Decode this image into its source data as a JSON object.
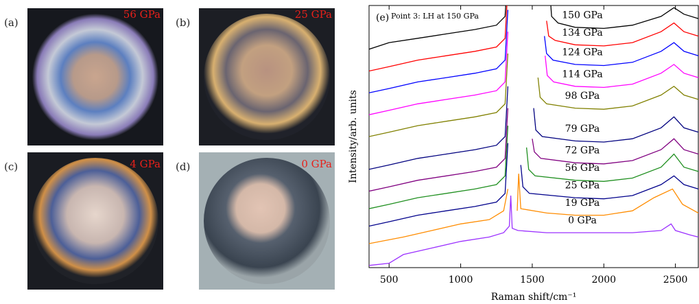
{
  "photos": [
    {
      "label": "(a)",
      "pressure": "56 GPa"
    },
    {
      "label": "(b)",
      "pressure": "25 GPa"
    },
    {
      "label": "(c)",
      "pressure": "4 GPa"
    },
    {
      "label": "(d)",
      "pressure": "0 GPa"
    }
  ],
  "chart_data": {
    "type": "line",
    "panel_label": "(e)",
    "annotation": "Point 3: LH at 150 GPa",
    "x_label": "Raman shift/cm⁻¹",
    "y_label": "Intensity/arb. units",
    "xlim": [
      360,
      2660
    ],
    "ylim": [
      0,
      12
    ],
    "xticks": [
      500,
      1000,
      1500,
      2000,
      2500
    ],
    "series": [
      {
        "name": "0 GPa",
        "color": "#9b30ff",
        "x": [
          360,
          500,
          600,
          800,
          1000,
          1200,
          1300,
          1340,
          1350,
          1360,
          1400,
          1600,
          1800,
          2000,
          2200,
          2400,
          2470,
          2500,
          2600,
          2660
        ],
        "values": [
          0.1,
          0.2,
          0.6,
          0.9,
          1.2,
          1.4,
          1.6,
          1.9,
          3.3,
          1.8,
          1.7,
          1.6,
          1.6,
          1.6,
          1.6,
          1.7,
          2.0,
          1.7,
          1.5,
          1.4
        ]
      },
      {
        "name": "19 GPa",
        "color": "#ff8c00",
        "x": [
          360,
          600,
          800,
          1000,
          1200,
          1300,
          1330,
          1340,
          1395,
          1405,
          1420,
          1600,
          1800,
          2000,
          2200,
          2350,
          2480,
          2550,
          2660
        ],
        "values": [
          1.1,
          1.4,
          1.7,
          2.0,
          2.2,
          2.6,
          3.6,
          null,
          2.6,
          4.3,
          2.7,
          2.5,
          2.4,
          2.4,
          2.6,
          3.2,
          3.6,
          2.9,
          2.5
        ]
      },
      {
        "name": "25 GPa",
        "color": "#00008b",
        "x": [
          360,
          500,
          700,
          900,
          1100,
          1250,
          1310,
          1330,
          1340,
          1420,
          1435,
          1480,
          1800,
          2000,
          2200,
          2400,
          2490,
          2560,
          2660
        ],
        "values": [
          1.9,
          2.1,
          2.4,
          2.6,
          2.8,
          3.0,
          3.4,
          5.7,
          null,
          4.7,
          3.7,
          3.4,
          3.2,
          3.15,
          3.3,
          3.8,
          4.2,
          3.8,
          3.6
        ]
      },
      {
        "name": "56 GPa",
        "color": "#1f8f1f",
        "x": [
          360,
          500,
          700,
          900,
          1100,
          1250,
          1310,
          1330,
          1340,
          1460,
          1475,
          1520,
          1800,
          2000,
          2200,
          2400,
          2490,
          2560,
          2660
        ],
        "values": [
          2.7,
          2.9,
          3.2,
          3.4,
          3.6,
          3.8,
          4.2,
          6.5,
          null,
          5.5,
          4.5,
          4.2,
          4.0,
          3.95,
          4.1,
          4.6,
          5.2,
          4.6,
          4.4
        ]
      },
      {
        "name": "72 GPa",
        "color": "#800080",
        "x": [
          360,
          500,
          700,
          900,
          1100,
          1250,
          1310,
          1330,
          1340,
          1500,
          1515,
          1560,
          1800,
          2000,
          2200,
          2400,
          2490,
          2560,
          2660
        ],
        "values": [
          3.5,
          3.7,
          4.0,
          4.2,
          4.4,
          4.6,
          5.0,
          7.3,
          null,
          5.9,
          5.3,
          5.0,
          4.8,
          4.75,
          4.9,
          5.4,
          5.9,
          5.4,
          5.2
        ]
      },
      {
        "name": "79 GPa",
        "color": "#00007f",
        "x": [
          360,
          500,
          700,
          900,
          1100,
          1250,
          1310,
          1330,
          1340,
          1510,
          1525,
          1570,
          1800,
          2000,
          2200,
          2400,
          2490,
          2560,
          2660
        ],
        "values": [
          4.5,
          4.7,
          5.0,
          5.2,
          5.4,
          5.6,
          6.0,
          8.3,
          null,
          7.3,
          6.3,
          6.0,
          5.8,
          5.75,
          5.9,
          6.4,
          6.9,
          6.4,
          6.2
        ]
      },
      {
        "name": "98 GPa",
        "color": "#808000",
        "x": [
          360,
          500,
          700,
          900,
          1100,
          1250,
          1310,
          1330,
          1340,
          1540,
          1555,
          1600,
          1800,
          2000,
          2200,
          2400,
          2490,
          2560,
          2660
        ],
        "values": [
          6.0,
          6.2,
          6.5,
          6.7,
          6.9,
          7.1,
          7.5,
          9.8,
          null,
          8.7,
          7.8,
          7.5,
          7.3,
          7.25,
          7.4,
          7.9,
          8.3,
          7.9,
          7.7
        ]
      },
      {
        "name": "114 GPa",
        "color": "#ff00ff",
        "x": [
          360,
          500,
          700,
          900,
          1100,
          1250,
          1310,
          1330,
          1340,
          1590,
          1605,
          1650,
          1800,
          2000,
          2200,
          2400,
          2490,
          2560,
          2660
        ],
        "values": [
          7.0,
          7.2,
          7.5,
          7.7,
          7.9,
          8.1,
          8.5,
          10.8,
          null,
          9.7,
          8.8,
          8.5,
          8.3,
          8.25,
          8.4,
          8.9,
          9.3,
          8.9,
          8.7
        ]
      },
      {
        "name": "124 GPa",
        "color": "#0000ff",
        "x": [
          360,
          500,
          700,
          900,
          1100,
          1250,
          1310,
          1330,
          1340,
          1585,
          1600,
          1645,
          1800,
          2000,
          2200,
          2400,
          2490,
          2560,
          2660
        ],
        "values": [
          8.0,
          8.2,
          8.5,
          8.7,
          8.9,
          9.1,
          9.5,
          11.8,
          null,
          10.6,
          9.8,
          9.5,
          9.3,
          9.25,
          9.4,
          9.9,
          10.3,
          9.9,
          9.7
        ]
      },
      {
        "name": "134 GPa",
        "color": "#ff0000",
        "x": [
          360,
          500,
          700,
          900,
          1100,
          1250,
          1310,
          1330,
          1340,
          1600,
          1615,
          1660,
          1800,
          2000,
          2200,
          2400,
          2490,
          2560,
          2660
        ],
        "values": [
          9.0,
          9.2,
          9.5,
          9.7,
          9.9,
          10.1,
          10.5,
          12.8,
          null,
          11.3,
          10.6,
          10.4,
          10.2,
          10.15,
          10.3,
          10.8,
          11.2,
          10.8,
          10.6
        ]
      },
      {
        "name": "150 GPa",
        "color": "#000000",
        "x": [
          360,
          500,
          700,
          900,
          1100,
          1250,
          1310,
          1330,
          1340,
          1620,
          1635,
          1680,
          1800,
          2000,
          2200,
          2400,
          2490,
          2560,
          2660
        ],
        "values": [
          10.0,
          10.3,
          10.5,
          10.7,
          10.9,
          11.1,
          11.5,
          13.6,
          null,
          12.9,
          11.5,
          11.2,
          11.0,
          10.95,
          11.1,
          11.5,
          11.9,
          11.6,
          11.4
        ]
      }
    ]
  }
}
